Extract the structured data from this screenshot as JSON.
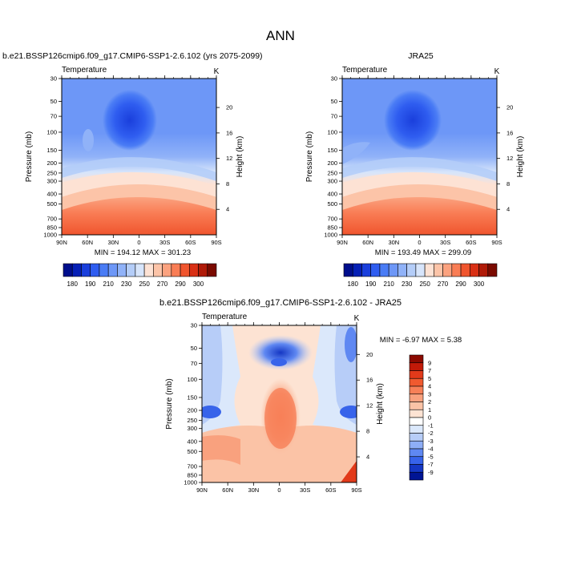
{
  "title": "ANN",
  "panels": [
    {
      "case_title": "b.e21.BSSP126cmip6.f09_g17.CMIP6-SSP1-2.6.102 (yrs 2075-2099)",
      "var_label": "Temperature",
      "unit": "K",
      "ylabel_left": "Pressure (mb)",
      "ylabel_right": "Height (km)",
      "stats": "MIN = 194.12   MAX = 301.23"
    },
    {
      "case_title": "JRA25",
      "var_label": "Temperature",
      "unit": "K",
      "ylabel_left": "Pressure (mb)",
      "ylabel_right": "Height (km)",
      "stats": "MIN = 193.49   MAX = 299.09"
    },
    {
      "case_title": "b.e21.BSSP126cmip6.f09_g17.CMIP6-SSP1-2.6.102 - JRA25",
      "var_label": "Temperature",
      "unit": "K",
      "ylabel_left": "Pressure (mb)",
      "ylabel_right": "Height (km)",
      "stats": "MIN =  -6.97   MAX =   5.38"
    }
  ],
  "axes": {
    "x_ticks": [
      "90N",
      "60N",
      "30N",
      "0",
      "30S",
      "60S",
      "90S"
    ],
    "pressure_ticks": [
      "30",
      "50",
      "70",
      "100",
      "150",
      "200",
      "250",
      "300",
      "400",
      "500",
      "700",
      "850",
      "1000"
    ],
    "height_ticks": [
      "20",
      "16",
      "12",
      "8",
      "4"
    ]
  },
  "colorbars": {
    "temperature_labels": [
      "180",
      "190",
      "210",
      "230",
      "250",
      "270",
      "290",
      "300"
    ],
    "temperature_colors": [
      "#000e8c",
      "#0620b6",
      "#1a3fdc",
      "#2f5df0",
      "#4a7cf5",
      "#6d97f7",
      "#90b2f8",
      "#b4cdf8",
      "#d7e5fb",
      "#fde2d4",
      "#fcc4a8",
      "#fba27f",
      "#f97d55",
      "#f0552e",
      "#d93015",
      "#b01a08",
      "#7a0a00"
    ],
    "diff_labels": [
      "9",
      "7",
      "5",
      "4",
      "3",
      "2",
      "1",
      "0",
      "-1",
      "-2",
      "-3",
      "-4",
      "-5",
      "-7",
      "-9"
    ],
    "diff_colors": [
      "#8b0a00",
      "#c21a08",
      "#e23a1a",
      "#f05a2f",
      "#f78058",
      "#f9a17e",
      "#fbc3a6",
      "#fde3d3",
      "#ffffff",
      "#dbe8fb",
      "#b7cdf8",
      "#8eaef6",
      "#5f88f2",
      "#3763ea",
      "#1537c4",
      "#001594"
    ]
  },
  "chart_data": [
    {
      "type": "heatmap",
      "title": "b.e21.BSSP126cmip6.f09_g17.CMIP6-SSP1-2.6.102 (yrs 2075-2099)",
      "variable": "Temperature",
      "units": "K",
      "xlabel": "",
      "ylabel": "Pressure (mb)",
      "y2label": "Height (km)",
      "min": 194.12,
      "max": 301.23,
      "levels": [
        180,
        185,
        190,
        200,
        210,
        220,
        230,
        240,
        250,
        260,
        270,
        280,
        290,
        295,
        300
      ]
    },
    {
      "type": "heatmap",
      "title": "JRA25",
      "variable": "Temperature",
      "units": "K",
      "xlabel": "",
      "ylabel": "Pressure (mb)",
      "y2label": "Height (km)",
      "min": 193.49,
      "max": 299.09,
      "levels": [
        180,
        185,
        190,
        200,
        210,
        220,
        230,
        240,
        250,
        260,
        270,
        280,
        290,
        295,
        300
      ]
    },
    {
      "type": "heatmap",
      "title": "b.e21.BSSP126cmip6.f09_g17.CMIP6-SSP1-2.6.102 - JRA25",
      "variable": "Temperature",
      "units": "K",
      "xlabel": "",
      "ylabel": "Pressure (mb)",
      "y2label": "Height (km)",
      "min": -6.97,
      "max": 5.38,
      "levels": [
        -9,
        -7,
        -5,
        -4,
        -3,
        -2,
        -1,
        0,
        1,
        2,
        3,
        4,
        5,
        7,
        9
      ]
    }
  ]
}
